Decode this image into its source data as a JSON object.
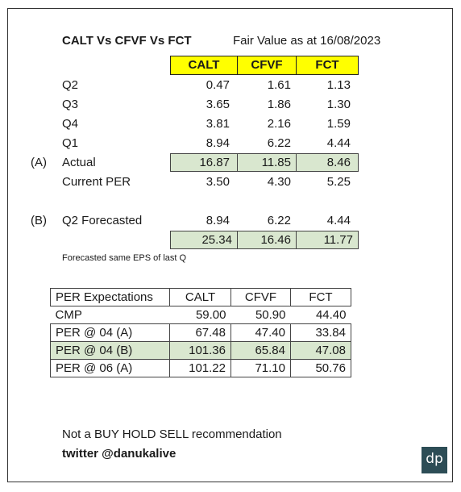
{
  "title": "CALT Vs CFVF Vs FCT",
  "fair_value": "Fair Value as at 16/08/2023",
  "columns": [
    "CALT",
    "CFVF",
    "FCT"
  ],
  "rows": [
    {
      "marker": "",
      "label": "Q2",
      "v": [
        "0.47",
        "1.61",
        "1.13"
      ]
    },
    {
      "marker": "",
      "label": "Q3",
      "v": [
        "3.65",
        "1.86",
        "1.30"
      ]
    },
    {
      "marker": "",
      "label": "Q4",
      "v": [
        "3.81",
        "2.16",
        "1.59"
      ]
    },
    {
      "marker": "",
      "label": "Q1",
      "v": [
        "8.94",
        "6.22",
        "4.44"
      ]
    },
    {
      "marker": "(A)",
      "label": "Actual",
      "v": [
        "16.87",
        "11.85",
        "8.46"
      ]
    },
    {
      "marker": "",
      "label": "Current PER",
      "v": [
        "3.50",
        "4.30",
        "5.25"
      ]
    }
  ],
  "forecast": {
    "marker": "(B)",
    "label": "Q2 Forecasted",
    "v": [
      "8.94",
      "6.22",
      "4.44"
    ]
  },
  "forecast_total": [
    "25.34",
    "16.46",
    "11.77"
  ],
  "forecast_note": "Forecasted same EPS of last Q",
  "per_table": {
    "header": [
      "PER Expectations",
      "CALT",
      "CFVF",
      "FCT"
    ],
    "rows": [
      [
        "CMP",
        "59.00",
        "50.90",
        "44.40"
      ],
      [
        "PER @ 04 (A)",
        "67.48",
        "47.40",
        "33.84"
      ],
      [
        "PER @ 04 (B)",
        "101.36",
        "65.84",
        "47.08"
      ],
      [
        "PER @ 06 (A)",
        "101.22",
        "71.10",
        "50.76"
      ]
    ]
  },
  "disclaimer": "Not a BUY HOLD SELL recommendation",
  "twitter": "twitter @danukalive",
  "logo_text": "dp"
}
